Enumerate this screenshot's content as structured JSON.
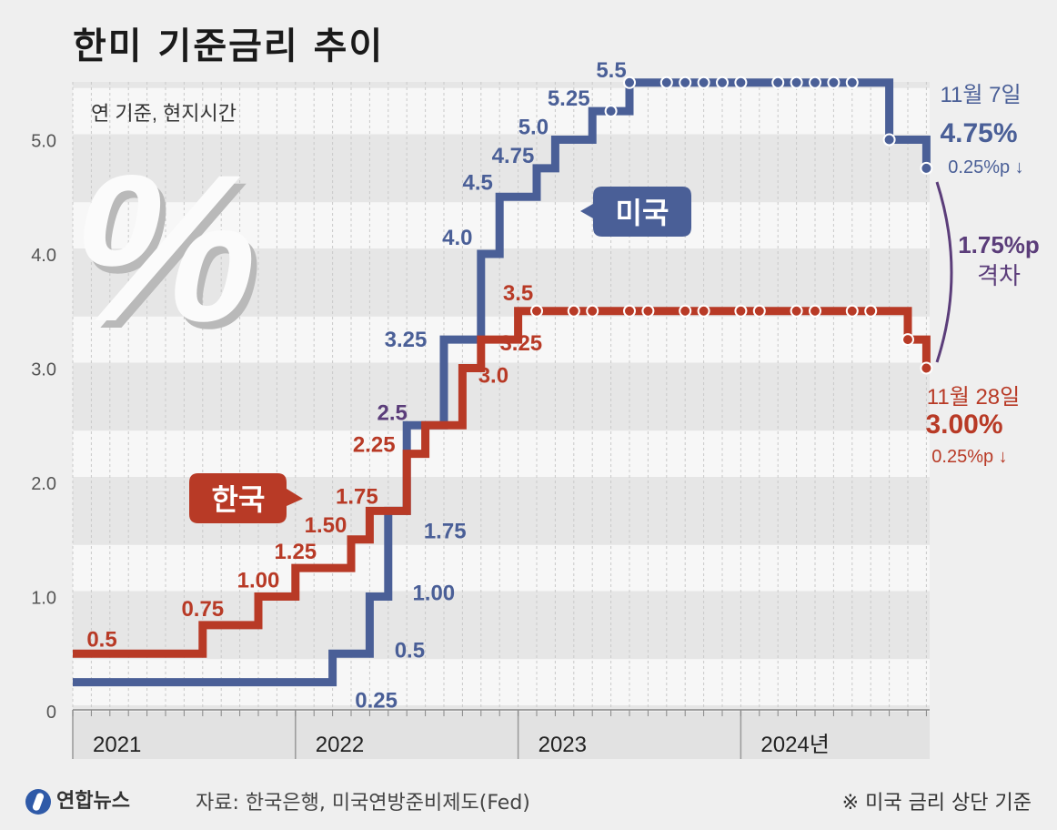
{
  "title": "한미 기준금리 추이",
  "footer": {
    "logo": "연합뉴스",
    "source": "자료: 한국은행, 미국연방준비제도(Fed)",
    "note": "※ 미국 금리 상단 기준"
  },
  "colors": {
    "us": "#4a5f97",
    "kr": "#b83a26",
    "gap": "#5b3d7a",
    "bg": "#efefef"
  },
  "chart_data": {
    "type": "line",
    "step": true,
    "note": "연 기준, 현지시간",
    "xlim": [
      "2021-01",
      "2024-12"
    ],
    "ylim": [
      0,
      5.5
    ],
    "yticks": [
      "0",
      "1.0",
      "2.0",
      "3.0",
      "4.0",
      "5.0"
    ],
    "xlabels": [
      "2021",
      "2022",
      "2023",
      "2024년"
    ],
    "series": [
      {
        "name": "미국",
        "color": "#4a5f97",
        "points": [
          [
            "2021-01",
            0.25
          ],
          [
            "2022-03",
            0.5
          ],
          [
            "2022-05",
            1.0
          ],
          [
            "2022-06",
            1.75
          ],
          [
            "2022-07",
            2.5
          ],
          [
            "2022-09",
            3.25
          ],
          [
            "2022-11",
            4.0
          ],
          [
            "2022-12",
            4.5
          ],
          [
            "2023-02",
            4.75
          ],
          [
            "2023-03",
            5.0
          ],
          [
            "2023-05",
            5.25
          ],
          [
            "2023-07",
            5.5
          ],
          [
            "2024-09",
            5.0
          ],
          [
            "2024-11",
            4.75
          ]
        ],
        "markers": [
          "2023-06",
          "2023-07",
          "2023-09",
          "2023-10",
          "2023-11",
          "2023-12",
          "2024-01",
          "2024-03",
          "2024-04",
          "2024-05",
          "2024-06",
          "2024-07",
          "2024-09",
          "2024-11"
        ]
      },
      {
        "name": "한국",
        "color": "#b83a26",
        "points": [
          [
            "2021-01",
            0.5
          ],
          [
            "2021-08",
            0.75
          ],
          [
            "2021-11",
            1.0
          ],
          [
            "2022-01",
            1.25
          ],
          [
            "2022-04",
            1.5
          ],
          [
            "2022-05",
            1.75
          ],
          [
            "2022-07",
            2.25
          ],
          [
            "2022-08",
            2.5
          ],
          [
            "2022-10",
            3.0
          ],
          [
            "2022-11",
            3.25
          ],
          [
            "2023-01",
            3.5
          ],
          [
            "2024-10",
            3.25
          ],
          [
            "2024-11",
            3.0
          ]
        ],
        "markers": [
          "2023-02",
          "2023-04",
          "2023-05",
          "2023-07",
          "2023-08",
          "2023-10",
          "2023-11",
          "2024-01",
          "2024-02",
          "2024-04",
          "2024-05",
          "2024-07",
          "2024-08",
          "2024-10",
          "2024-11"
        ]
      }
    ],
    "us_labels": [
      {
        "text": "0.25",
        "x": "2022-03",
        "y": 0.25
      },
      {
        "text": "0.5",
        "x": "2022-05",
        "y": 0.5
      },
      {
        "text": "1.00",
        "x": "2022-06",
        "y": 1.0
      },
      {
        "text": "1.75",
        "x": "2022-07",
        "y": 1.75
      },
      {
        "text": "2.5",
        "x": "2022-07",
        "y": 2.5
      },
      {
        "text": "3.25",
        "x": "2022-09",
        "y": 3.25
      },
      {
        "text": "4.0",
        "x": "2022-11",
        "y": 4.0
      },
      {
        "text": "4.5",
        "x": "2022-12",
        "y": 4.5
      },
      {
        "text": "4.75",
        "x": "2023-02",
        "y": 4.75
      },
      {
        "text": "5.0",
        "x": "2023-03",
        "y": 5.0
      },
      {
        "text": "5.25",
        "x": "2023-05",
        "y": 5.25
      },
      {
        "text": "5.5",
        "x": "2023-07",
        "y": 5.5
      }
    ],
    "kr_labels": [
      {
        "text": "0.5",
        "x": "2021-01",
        "y": 0.5
      },
      {
        "text": "0.75",
        "x": "2021-08",
        "y": 0.75
      },
      {
        "text": "1.00",
        "x": "2021-11",
        "y": 1.0
      },
      {
        "text": "1.25",
        "x": "2022-01",
        "y": 1.25
      },
      {
        "text": "1.50",
        "x": "2022-04",
        "y": 1.5
      },
      {
        "text": "1.75",
        "x": "2022-05",
        "y": 1.75
      },
      {
        "text": "2.25",
        "x": "2022-07",
        "y": 2.25
      },
      {
        "text": "3.0",
        "x": "2022-10",
        "y": 3.0
      },
      {
        "text": "3.25",
        "x": "2022-11",
        "y": 3.25
      },
      {
        "text": "3.5",
        "x": "2023-01",
        "y": 3.5
      }
    ],
    "callouts": {
      "us": {
        "date": "11월 7일",
        "rate": "4.75%",
        "change": "0.25%p ↓"
      },
      "kr": {
        "date": "11월 28일",
        "rate": "3.00%",
        "change": "0.25%p ↓"
      },
      "gap": {
        "value": "1.75%p",
        "label": "격차"
      }
    }
  }
}
